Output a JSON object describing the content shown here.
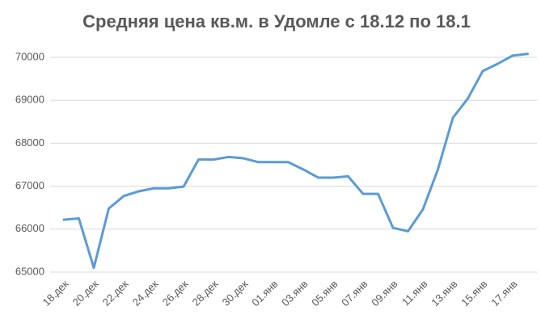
{
  "chart_data": {
    "type": "line",
    "title": "Средняя цена кв.м. в Удомле с 18.12 по 18.1",
    "categories": [
      "18.дек",
      null,
      "20.дек",
      null,
      "22.дек",
      null,
      "24.дек",
      null,
      "26.дек",
      null,
      "28.дек",
      null,
      "30.дек",
      null,
      "01.янв",
      null,
      "03.янв",
      null,
      "05.янв",
      null,
      "07.янв",
      null,
      "09.янв",
      null,
      "11.янв",
      null,
      "13.янв",
      null,
      "15.янв",
      null,
      "17.янв",
      null
    ],
    "series": [
      {
        "name": "Средняя цена",
        "color": "#5b9bd5",
        "values": [
          66220,
          66250,
          65100,
          66480,
          66770,
          66880,
          66950,
          66950,
          66990,
          67620,
          67620,
          67680,
          67650,
          67560,
          67560,
          67560,
          67390,
          67200,
          67200,
          67230,
          66820,
          66820,
          66030,
          65950,
          66460,
          67390,
          68590,
          69040,
          69680,
          69850,
          70040,
          70080
        ]
      }
    ],
    "ylim": [
      65000,
      70000
    ],
    "yticks": [
      65000,
      66000,
      67000,
      68000,
      69000,
      70000
    ],
    "grid": true
  }
}
